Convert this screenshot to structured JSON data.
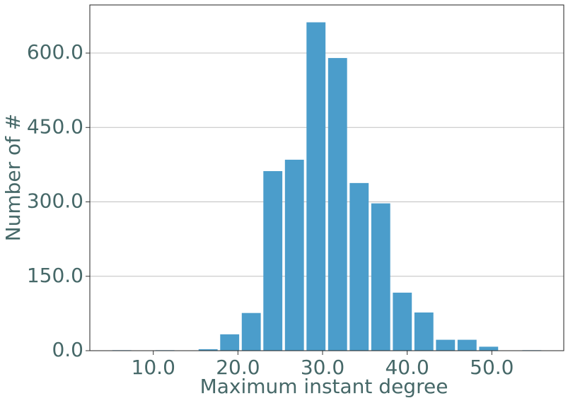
{
  "chart_data": {
    "type": "histogram",
    "xlabel": "Maximum instant degree",
    "ylabel": "Number of #",
    "bins": [
      5,
      7.55,
      10.1,
      12.65,
      15.2,
      17.75,
      20.3,
      22.85,
      25.4,
      27.95,
      30.5,
      33.05,
      35.6,
      38.15,
      40.7,
      43.25,
      45.8,
      48.35,
      50.9,
      53.45,
      56
    ],
    "values": [
      1,
      0,
      1,
      0,
      3,
      33,
      76,
      362,
      385,
      662,
      590,
      338,
      297,
      117,
      77,
      22,
      22,
      8,
      0,
      1
    ],
    "color": "#4b9dcb",
    "xlim": [
      2.5,
      58.5
    ],
    "xticks": [
      {
        "value": 10,
        "label": "10.0"
      },
      {
        "value": 20,
        "label": "20.0"
      },
      {
        "value": 30,
        "label": "30.0"
      },
      {
        "value": 40,
        "label": "40.0"
      },
      {
        "value": 50,
        "label": "50.0"
      }
    ],
    "ylim": [
      0,
      697
    ],
    "yticks": [
      {
        "value": 0,
        "label": "0.0"
      },
      {
        "value": 150,
        "label": "150.0"
      },
      {
        "value": 300,
        "label": "300.0"
      },
      {
        "value": 450,
        "label": "450.0"
      },
      {
        "value": 600,
        "label": "600.0"
      }
    ],
    "grid": true
  }
}
